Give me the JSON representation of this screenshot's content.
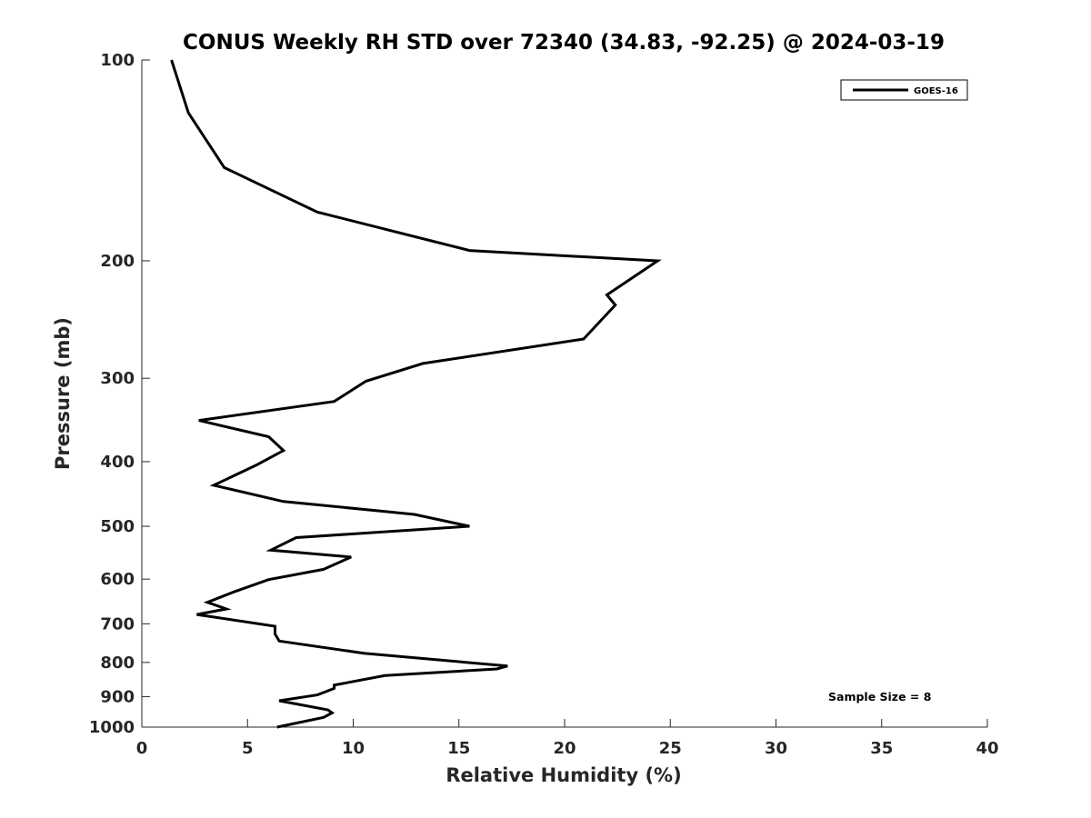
{
  "chart_data": {
    "type": "line",
    "title": "CONUS Weekly RH STD over 72340 (34.83, -92.25) @ 2024-03-19",
    "xlabel": "Relative Humidity (%)",
    "ylabel": "Pressure (mb)",
    "xlim": [
      0,
      40
    ],
    "ylim": [
      100,
      1000
    ],
    "y_scale": "log",
    "y_reversed": true,
    "x_ticks": [
      "0",
      "5",
      "10",
      "15",
      "20",
      "25",
      "30",
      "35",
      "40"
    ],
    "y_ticks": [
      "100",
      "200",
      "300",
      "400",
      "500",
      "600",
      "700",
      "800",
      "900",
      "1000"
    ],
    "grid": false,
    "legend_position": "top-right",
    "series": [
      {
        "name": "GOES-16",
        "color": "#000000",
        "x": [
          1.4,
          2.2,
          3.9,
          8.3,
          15.5,
          24.4,
          22.0,
          22.4,
          20.9,
          13.3,
          10.6,
          9.1,
          2.7,
          6.0,
          6.7,
          5.4,
          3.4,
          6.7,
          11.5,
          12.9,
          15.5,
          7.3,
          6.1,
          9.9,
          8.6,
          6.0,
          4.3,
          3.1,
          4.0,
          2.6,
          6.3,
          6.3,
          6.5,
          10.5,
          17.3,
          16.8,
          11.5,
          9.1,
          9.1,
          8.3,
          6.5,
          8.8,
          9.0,
          8.6,
          6.4
        ],
        "y": [
          100,
          120,
          145,
          169,
          193,
          200,
          225,
          233,
          262,
          285,
          303,
          325,
          347,
          367,
          385,
          405,
          434,
          459,
          475,
          480,
          500,
          520,
          543,
          556,
          580,
          601,
          628,
          650,
          665,
          678,
          706,
          725,
          743,
          775,
          810,
          818,
          837,
          865,
          875,
          895,
          913,
          942,
          952,
          967,
          1000
        ]
      }
    ],
    "annotations": [
      "Sample Size = 8"
    ]
  }
}
